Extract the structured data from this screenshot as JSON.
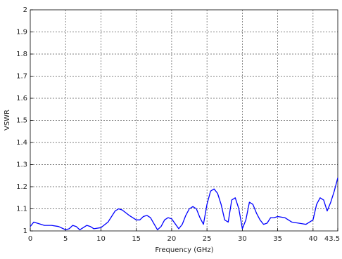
{
  "chart_data": {
    "type": "line",
    "xlabel": "Frequency (GHz)",
    "ylabel": "VSWR",
    "x": [
      0,
      0.5,
      1,
      2,
      3,
      4,
      5,
      5.5,
      6,
      6.5,
      7,
      7.5,
      8,
      8.5,
      9,
      10,
      11,
      12,
      12.5,
      13,
      14,
      15,
      15.5,
      16,
      16.5,
      17,
      18,
      18.5,
      19,
      19.5,
      20,
      21,
      21.5,
      22,
      22.5,
      23,
      23.5,
      24,
      24.5,
      25,
      25.5,
      26,
      26.5,
      27,
      27.5,
      28,
      28.5,
      29,
      29.5,
      30,
      30.5,
      31,
      31.5,
      32,
      32.5,
      33,
      33.5,
      34,
      34.5,
      35,
      36,
      37,
      38,
      39,
      40,
      40.5,
      41,
      41.5,
      42,
      42.5,
      43,
      43.5
    ],
    "values": [
      1.02,
      1.04,
      1.035,
      1.025,
      1.025,
      1.02,
      1.005,
      1.01,
      1.025,
      1.02,
      1.005,
      1.015,
      1.025,
      1.02,
      1.01,
      1.015,
      1.04,
      1.09,
      1.1,
      1.095,
      1.07,
      1.05,
      1.05,
      1.065,
      1.07,
      1.06,
      1.005,
      1.02,
      1.05,
      1.06,
      1.055,
      1.01,
      1.03,
      1.07,
      1.1,
      1.11,
      1.1,
      1.06,
      1.03,
      1.12,
      1.18,
      1.19,
      1.17,
      1.12,
      1.05,
      1.04,
      1.14,
      1.15,
      1.1,
      1.01,
      1.05,
      1.13,
      1.12,
      1.08,
      1.05,
      1.03,
      1.035,
      1.06,
      1.06,
      1.065,
      1.06,
      1.04,
      1.035,
      1.03,
      1.05,
      1.12,
      1.15,
      1.14,
      1.09,
      1.13,
      1.18,
      1.24
    ],
    "color": "#0000ff",
    "xlim": [
      0,
      43.5
    ],
    "xticks": [
      0,
      5,
      10,
      15,
      20,
      25,
      30,
      35,
      40,
      43.5
    ],
    "ylim": [
      1,
      2
    ],
    "yticks": [
      1,
      1.1,
      1.2,
      1.3,
      1.4,
      1.5,
      1.6,
      1.7,
      1.8,
      1.9,
      2
    ],
    "grid": true
  }
}
